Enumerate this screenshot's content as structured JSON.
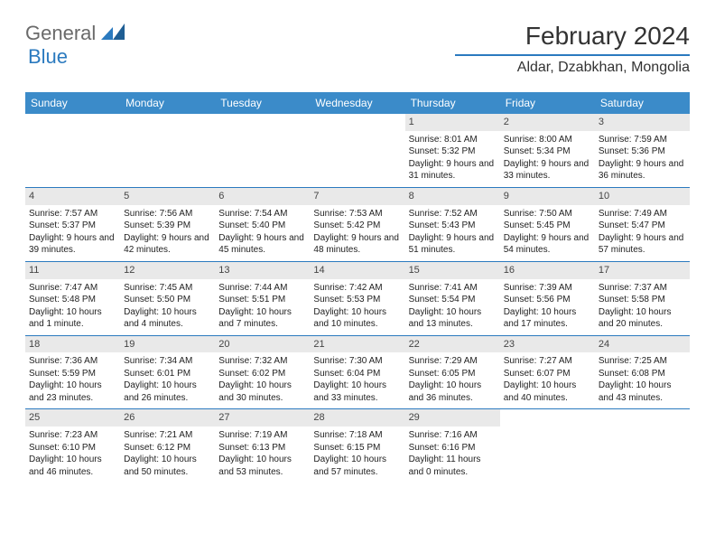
{
  "logo": {
    "general": "General",
    "blue": "Blue"
  },
  "title": "February 2024",
  "location": "Aldar, Dzabkhan, Mongolia",
  "day_names": [
    "Sunday",
    "Monday",
    "Tuesday",
    "Wednesday",
    "Thursday",
    "Friday",
    "Saturday"
  ],
  "colors": {
    "header_bg": "#3b8bc9",
    "accent": "#2b7abf",
    "date_bg": "#e9e9e9",
    "text": "#222222"
  },
  "layout": {
    "columns": 7,
    "rows": 5,
    "cell_fontsize": 10,
    "header_fontsize": 12,
    "title_fontsize": 28,
    "location_fontsize": 16
  },
  "weeks": [
    [
      {
        "empty": true
      },
      {
        "empty": true
      },
      {
        "empty": true
      },
      {
        "empty": true
      },
      {
        "date": "1",
        "sunrise": "Sunrise: 8:01 AM",
        "sunset": "Sunset: 5:32 PM",
        "daylight": "Daylight: 9 hours and 31 minutes."
      },
      {
        "date": "2",
        "sunrise": "Sunrise: 8:00 AM",
        "sunset": "Sunset: 5:34 PM",
        "daylight": "Daylight: 9 hours and 33 minutes."
      },
      {
        "date": "3",
        "sunrise": "Sunrise: 7:59 AM",
        "sunset": "Sunset: 5:36 PM",
        "daylight": "Daylight: 9 hours and 36 minutes."
      }
    ],
    [
      {
        "date": "4",
        "sunrise": "Sunrise: 7:57 AM",
        "sunset": "Sunset: 5:37 PM",
        "daylight": "Daylight: 9 hours and 39 minutes."
      },
      {
        "date": "5",
        "sunrise": "Sunrise: 7:56 AM",
        "sunset": "Sunset: 5:39 PM",
        "daylight": "Daylight: 9 hours and 42 minutes."
      },
      {
        "date": "6",
        "sunrise": "Sunrise: 7:54 AM",
        "sunset": "Sunset: 5:40 PM",
        "daylight": "Daylight: 9 hours and 45 minutes."
      },
      {
        "date": "7",
        "sunrise": "Sunrise: 7:53 AM",
        "sunset": "Sunset: 5:42 PM",
        "daylight": "Daylight: 9 hours and 48 minutes."
      },
      {
        "date": "8",
        "sunrise": "Sunrise: 7:52 AM",
        "sunset": "Sunset: 5:43 PM",
        "daylight": "Daylight: 9 hours and 51 minutes."
      },
      {
        "date": "9",
        "sunrise": "Sunrise: 7:50 AM",
        "sunset": "Sunset: 5:45 PM",
        "daylight": "Daylight: 9 hours and 54 minutes."
      },
      {
        "date": "10",
        "sunrise": "Sunrise: 7:49 AM",
        "sunset": "Sunset: 5:47 PM",
        "daylight": "Daylight: 9 hours and 57 minutes."
      }
    ],
    [
      {
        "date": "11",
        "sunrise": "Sunrise: 7:47 AM",
        "sunset": "Sunset: 5:48 PM",
        "daylight": "Daylight: 10 hours and 1 minute."
      },
      {
        "date": "12",
        "sunrise": "Sunrise: 7:45 AM",
        "sunset": "Sunset: 5:50 PM",
        "daylight": "Daylight: 10 hours and 4 minutes."
      },
      {
        "date": "13",
        "sunrise": "Sunrise: 7:44 AM",
        "sunset": "Sunset: 5:51 PM",
        "daylight": "Daylight: 10 hours and 7 minutes."
      },
      {
        "date": "14",
        "sunrise": "Sunrise: 7:42 AM",
        "sunset": "Sunset: 5:53 PM",
        "daylight": "Daylight: 10 hours and 10 minutes."
      },
      {
        "date": "15",
        "sunrise": "Sunrise: 7:41 AM",
        "sunset": "Sunset: 5:54 PM",
        "daylight": "Daylight: 10 hours and 13 minutes."
      },
      {
        "date": "16",
        "sunrise": "Sunrise: 7:39 AM",
        "sunset": "Sunset: 5:56 PM",
        "daylight": "Daylight: 10 hours and 17 minutes."
      },
      {
        "date": "17",
        "sunrise": "Sunrise: 7:37 AM",
        "sunset": "Sunset: 5:58 PM",
        "daylight": "Daylight: 10 hours and 20 minutes."
      }
    ],
    [
      {
        "date": "18",
        "sunrise": "Sunrise: 7:36 AM",
        "sunset": "Sunset: 5:59 PM",
        "daylight": "Daylight: 10 hours and 23 minutes."
      },
      {
        "date": "19",
        "sunrise": "Sunrise: 7:34 AM",
        "sunset": "Sunset: 6:01 PM",
        "daylight": "Daylight: 10 hours and 26 minutes."
      },
      {
        "date": "20",
        "sunrise": "Sunrise: 7:32 AM",
        "sunset": "Sunset: 6:02 PM",
        "daylight": "Daylight: 10 hours and 30 minutes."
      },
      {
        "date": "21",
        "sunrise": "Sunrise: 7:30 AM",
        "sunset": "Sunset: 6:04 PM",
        "daylight": "Daylight: 10 hours and 33 minutes."
      },
      {
        "date": "22",
        "sunrise": "Sunrise: 7:29 AM",
        "sunset": "Sunset: 6:05 PM",
        "daylight": "Daylight: 10 hours and 36 minutes."
      },
      {
        "date": "23",
        "sunrise": "Sunrise: 7:27 AM",
        "sunset": "Sunset: 6:07 PM",
        "daylight": "Daylight: 10 hours and 40 minutes."
      },
      {
        "date": "24",
        "sunrise": "Sunrise: 7:25 AM",
        "sunset": "Sunset: 6:08 PM",
        "daylight": "Daylight: 10 hours and 43 minutes."
      }
    ],
    [
      {
        "date": "25",
        "sunrise": "Sunrise: 7:23 AM",
        "sunset": "Sunset: 6:10 PM",
        "daylight": "Daylight: 10 hours and 46 minutes."
      },
      {
        "date": "26",
        "sunrise": "Sunrise: 7:21 AM",
        "sunset": "Sunset: 6:12 PM",
        "daylight": "Daylight: 10 hours and 50 minutes."
      },
      {
        "date": "27",
        "sunrise": "Sunrise: 7:19 AM",
        "sunset": "Sunset: 6:13 PM",
        "daylight": "Daylight: 10 hours and 53 minutes."
      },
      {
        "date": "28",
        "sunrise": "Sunrise: 7:18 AM",
        "sunset": "Sunset: 6:15 PM",
        "daylight": "Daylight: 10 hours and 57 minutes."
      },
      {
        "date": "29",
        "sunrise": "Sunrise: 7:16 AM",
        "sunset": "Sunset: 6:16 PM",
        "daylight": "Daylight: 11 hours and 0 minutes."
      },
      {
        "empty": true
      },
      {
        "empty": true
      }
    ]
  ]
}
